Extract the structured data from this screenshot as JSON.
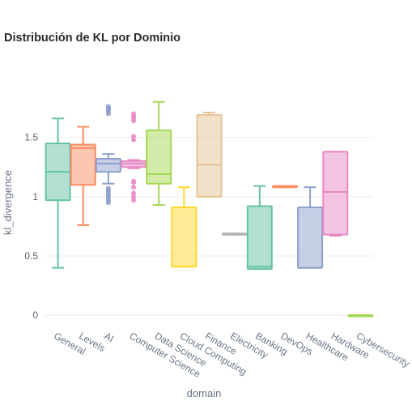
{
  "chart_data": {
    "type": "box",
    "title": "Distribución de KL por Dominio",
    "xlabel": "domain",
    "ylabel": "kl_divergence",
    "ylim": [
      -0.04,
      1.86
    ],
    "yticks": [
      0,
      0.5,
      1,
      1.5
    ],
    "ytick_labels": [
      "0",
      "0.5",
      "1",
      "1.5"
    ],
    "grid": true,
    "legend": "none",
    "categories": [
      "General",
      "Levels",
      "AI",
      "Computer Science",
      "Data Science",
      "Cloud Computing",
      "Finance",
      "Electricity",
      "Banking",
      "DevOps",
      "Healthcare",
      "Hardware",
      "Cybersecurity"
    ],
    "boxes": [
      {
        "category": "General",
        "color": "#66c2a5",
        "min": 0.4,
        "q1": 0.97,
        "median": 1.21,
        "q3": 1.45,
        "max": 1.66,
        "outliers": []
      },
      {
        "category": "Levels",
        "color": "#fc8d62",
        "min": 0.76,
        "q1": 1.1,
        "median": 1.41,
        "q3": 1.44,
        "max": 1.59,
        "outliers": []
      },
      {
        "category": "AI",
        "color": "#8da0cb",
        "min": 1.11,
        "q1": 1.21,
        "median": 1.28,
        "q3": 1.32,
        "max": 1.36,
        "outliers": [
          0.95,
          0.97,
          0.99,
          1.01,
          1.03,
          1.05,
          1.07,
          1.7,
          1.72,
          1.73,
          1.74,
          1.75,
          1.76
        ]
      },
      {
        "category": "Computer Science",
        "color": "#e78ac3",
        "min": 1.24,
        "q1": 1.25,
        "median": 1.28,
        "q3": 1.3,
        "max": 1.31,
        "outliers": [
          0.97,
          1.0,
          1.03,
          1.08,
          1.12,
          1.13,
          1.48,
          1.51,
          1.64,
          1.66,
          1.68,
          1.7
        ]
      },
      {
        "category": "Data Science",
        "color": "#a6d854",
        "min": 0.93,
        "q1": 1.11,
        "median": 1.19,
        "q3": 1.56,
        "max": 1.8,
        "outliers": []
      },
      {
        "category": "Cloud Computing",
        "color": "#ffd92f",
        "min": 0.41,
        "q1": 0.41,
        "median": 0.41,
        "q3": 0.91,
        "max": 1.08,
        "outliers": []
      },
      {
        "category": "Finance",
        "color": "#e5c494",
        "min": 1.0,
        "q1": 1.0,
        "median": 1.27,
        "q3": 1.69,
        "max": 1.71,
        "outliers": []
      },
      {
        "category": "Electricity",
        "color": "#b3b3b3",
        "min": 0.68,
        "q1": 0.68,
        "median": 0.68,
        "q3": 0.69,
        "max": 0.69,
        "outliers": []
      },
      {
        "category": "Banking",
        "color": "#66c2a5",
        "min": 0.39,
        "q1": 0.39,
        "median": 0.41,
        "q3": 0.92,
        "max": 1.09,
        "outliers": []
      },
      {
        "category": "DevOps",
        "color": "#fc8d62",
        "min": 1.08,
        "q1": 1.08,
        "median": 1.08,
        "q3": 1.09,
        "max": 1.09,
        "outliers": []
      },
      {
        "category": "Healthcare",
        "color": "#8da0cb",
        "min": 0.4,
        "q1": 0.4,
        "median": 0.4,
        "q3": 0.91,
        "max": 1.08,
        "outliers": []
      },
      {
        "category": "Hardware",
        "color": "#e78ac3",
        "min": 0.67,
        "q1": 0.68,
        "median": 1.04,
        "q3": 1.38,
        "max": 1.38,
        "outliers": []
      },
      {
        "category": "Cybersecurity",
        "color": "#a6d854",
        "min": 0.0,
        "q1": 0.0,
        "median": 0.0,
        "q3": 0.0,
        "max": 0.0,
        "outliers": []
      }
    ]
  }
}
